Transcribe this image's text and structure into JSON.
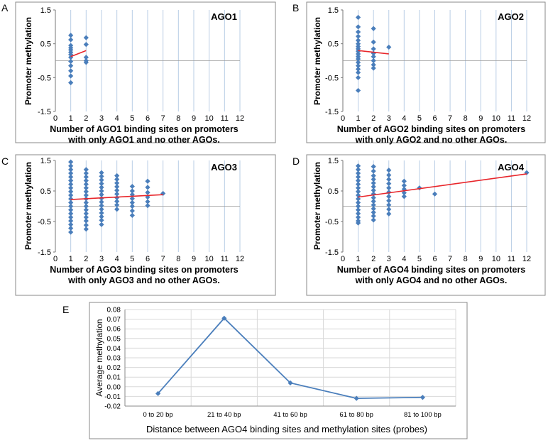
{
  "chart_data": [
    {
      "panel": "A",
      "type": "scatter",
      "label": "AGO1",
      "xlabel": [
        "Number of AGO1 binding sites on promoters",
        "with only AGO1 and no other AGOs."
      ],
      "ylabel": "Promoter methylation",
      "xlim": [
        0,
        12
      ],
      "ylim": [
        -1.5,
        1.5
      ],
      "xticks": [
        "0",
        "1",
        "2",
        "3",
        "4",
        "5",
        "6",
        "7",
        "8",
        "9",
        "10",
        "11",
        "12"
      ],
      "yticks": [
        "1.5",
        "0.5",
        "-0.5",
        "-1.5"
      ],
      "points": [
        [
          1,
          0.75
        ],
        [
          1,
          0.62
        ],
        [
          1,
          0.45
        ],
        [
          1,
          0.38
        ],
        [
          1,
          0.32
        ],
        [
          1,
          0.25
        ],
        [
          1,
          0.18
        ],
        [
          1,
          0.1
        ],
        [
          1,
          -0.02
        ],
        [
          1,
          -0.15
        ],
        [
          1,
          -0.3
        ],
        [
          1,
          -0.45
        ],
        [
          1,
          -0.65
        ],
        [
          2,
          0.68
        ],
        [
          2,
          0.48
        ],
        [
          2,
          0.1
        ],
        [
          2,
          0.0
        ],
        [
          2,
          -0.05
        ]
      ],
      "trend": [
        [
          1,
          0.12
        ],
        [
          2,
          0.3
        ]
      ]
    },
    {
      "panel": "B",
      "type": "scatter",
      "label": "AGO2",
      "xlabel": [
        "Number of AGO2 binding sites on promoters",
        "with only AGO2 and no other AGOs."
      ],
      "ylabel": "Promoter methylation",
      "xlim": [
        0,
        12
      ],
      "ylim": [
        -1.5,
        1.5
      ],
      "xticks": [
        "0",
        "1",
        "2",
        "3",
        "4",
        "5",
        "6",
        "7",
        "8",
        "9",
        "10",
        "11",
        "12"
      ],
      "yticks": [
        "1.5",
        "0.5",
        "-0.5",
        "-1.5"
      ],
      "points": [
        [
          1,
          1.28
        ],
        [
          1,
          1.0
        ],
        [
          1,
          0.85
        ],
        [
          1,
          0.72
        ],
        [
          1,
          0.6
        ],
        [
          1,
          0.5
        ],
        [
          1,
          0.42
        ],
        [
          1,
          0.35
        ],
        [
          1,
          0.28
        ],
        [
          1,
          0.2
        ],
        [
          1,
          0.12
        ],
        [
          1,
          0.05
        ],
        [
          1,
          -0.05
        ],
        [
          1,
          -0.15
        ],
        [
          1,
          -0.25
        ],
        [
          1,
          -0.35
        ],
        [
          1,
          -0.5
        ],
        [
          1,
          -0.88
        ],
        [
          2,
          0.95
        ],
        [
          2,
          0.55
        ],
        [
          2,
          0.35
        ],
        [
          2,
          0.22
        ],
        [
          2,
          0.12
        ],
        [
          2,
          0.0
        ],
        [
          2,
          -0.12
        ],
        [
          2,
          -0.22
        ],
        [
          3,
          0.4
        ]
      ],
      "trend": [
        [
          1,
          0.3
        ],
        [
          3,
          0.2
        ]
      ]
    },
    {
      "panel": "C",
      "type": "scatter",
      "label": "AGO3",
      "xlabel": [
        "Number of AGO3 binding sites on promoters",
        "with only AGO3 and no other AGOs."
      ],
      "ylabel": "Promoter methylation",
      "xlim": [
        0,
        12
      ],
      "ylim": [
        -1.5,
        1.5
      ],
      "xticks": [
        "0",
        "1",
        "2",
        "3",
        "4",
        "5",
        "6",
        "7",
        "8",
        "9",
        "10",
        "11",
        "12"
      ],
      "yticks": [
        "1.5",
        "0.5",
        "-0.5",
        "-1.5"
      ],
      "points": [
        [
          1,
          1.45
        ],
        [
          1,
          1.32
        ],
        [
          1,
          1.2
        ],
        [
          1,
          1.08
        ],
        [
          1,
          0.96
        ],
        [
          1,
          0.84
        ],
        [
          1,
          0.72
        ],
        [
          1,
          0.6
        ],
        [
          1,
          0.48
        ],
        [
          1,
          0.36
        ],
        [
          1,
          0.24
        ],
        [
          1,
          0.12
        ],
        [
          1,
          0.0
        ],
        [
          1,
          -0.12
        ],
        [
          1,
          -0.24
        ],
        [
          1,
          -0.36
        ],
        [
          1,
          -0.48
        ],
        [
          1,
          -0.6
        ],
        [
          1,
          -0.72
        ],
        [
          1,
          -0.85
        ],
        [
          2,
          1.2
        ],
        [
          2,
          1.08
        ],
        [
          2,
          0.96
        ],
        [
          2,
          0.84
        ],
        [
          2,
          0.72
        ],
        [
          2,
          0.6
        ],
        [
          2,
          0.48
        ],
        [
          2,
          0.36
        ],
        [
          2,
          0.24
        ],
        [
          2,
          0.12
        ],
        [
          2,
          0.0
        ],
        [
          2,
          -0.12
        ],
        [
          2,
          -0.24
        ],
        [
          2,
          -0.36
        ],
        [
          2,
          -0.48
        ],
        [
          2,
          -0.62
        ],
        [
          2,
          -0.75
        ],
        [
          3,
          1.1
        ],
        [
          3,
          0.98
        ],
        [
          3,
          0.86
        ],
        [
          3,
          0.74
        ],
        [
          3,
          0.62
        ],
        [
          3,
          0.5
        ],
        [
          3,
          0.38
        ],
        [
          3,
          0.26
        ],
        [
          3,
          0.14
        ],
        [
          3,
          0.02
        ],
        [
          3,
          -0.1
        ],
        [
          3,
          -0.22
        ],
        [
          3,
          -0.34
        ],
        [
          3,
          -0.46
        ],
        [
          3,
          -0.6
        ],
        [
          4,
          1.0
        ],
        [
          4,
          0.88
        ],
        [
          4,
          0.76
        ],
        [
          4,
          0.64
        ],
        [
          4,
          0.52
        ],
        [
          4,
          0.4
        ],
        [
          4,
          0.28
        ],
        [
          4,
          0.16
        ],
        [
          4,
          0.04
        ],
        [
          4,
          -0.1
        ],
        [
          5,
          0.65
        ],
        [
          5,
          0.5
        ],
        [
          5,
          0.38
        ],
        [
          5,
          0.25
        ],
        [
          5,
          0.12
        ],
        [
          5,
          0.0
        ],
        [
          5,
          -0.15
        ],
        [
          5,
          -0.3
        ],
        [
          6,
          0.82
        ],
        [
          6,
          0.62
        ],
        [
          6,
          0.45
        ],
        [
          6,
          0.3
        ],
        [
          6,
          0.15
        ],
        [
          6,
          0.02
        ],
        [
          7,
          0.42
        ]
      ],
      "trend": [
        [
          1,
          0.22
        ],
        [
          7,
          0.38
        ]
      ]
    },
    {
      "panel": "D",
      "type": "scatter",
      "label": "AGO4",
      "xlabel": [
        "Number of AGO4 binding sites on promoters",
        "with only AGO4 and no other AGOs."
      ],
      "ylabel": "Promoter methylation",
      "xlim": [
        0,
        12
      ],
      "ylim": [
        -1.5,
        1.5
      ],
      "xticks": [
        "0",
        "1",
        "2",
        "3",
        "4",
        "5",
        "6",
        "7",
        "8",
        "9",
        "10",
        "11",
        "12"
      ],
      "yticks": [
        "1.5",
        "0.5",
        "-0.5",
        "-1.5"
      ],
      "points": [
        [
          1,
          1.32
        ],
        [
          1,
          1.2
        ],
        [
          1,
          1.08
        ],
        [
          1,
          0.96
        ],
        [
          1,
          0.84
        ],
        [
          1,
          0.72
        ],
        [
          1,
          0.6
        ],
        [
          1,
          0.48
        ],
        [
          1,
          0.36
        ],
        [
          1,
          0.24
        ],
        [
          1,
          0.12
        ],
        [
          1,
          0.0
        ],
        [
          1,
          -0.12
        ],
        [
          1,
          -0.24
        ],
        [
          1,
          -0.36
        ],
        [
          1,
          -0.48
        ],
        [
          1,
          -0.55
        ],
        [
          2,
          1.3
        ],
        [
          2,
          1.15
        ],
        [
          2,
          1.0
        ],
        [
          2,
          0.88
        ],
        [
          2,
          0.76
        ],
        [
          2,
          0.64
        ],
        [
          2,
          0.52
        ],
        [
          2,
          0.4
        ],
        [
          2,
          0.28
        ],
        [
          2,
          0.16
        ],
        [
          2,
          0.04
        ],
        [
          2,
          -0.08
        ],
        [
          2,
          -0.2
        ],
        [
          2,
          -0.32
        ],
        [
          2,
          -0.45
        ],
        [
          3,
          1.18
        ],
        [
          3,
          1.02
        ],
        [
          3,
          0.88
        ],
        [
          3,
          0.74
        ],
        [
          3,
          0.6
        ],
        [
          3,
          0.46
        ],
        [
          3,
          0.32
        ],
        [
          3,
          0.18
        ],
        [
          3,
          0.04
        ],
        [
          3,
          -0.1
        ],
        [
          3,
          -0.25
        ],
        [
          4,
          0.82
        ],
        [
          4,
          0.68
        ],
        [
          4,
          0.56
        ],
        [
          4,
          0.44
        ],
        [
          4,
          0.32
        ],
        [
          5,
          0.6
        ],
        [
          6,
          0.4
        ],
        [
          12,
          1.1
        ]
      ],
      "trend": [
        [
          1,
          0.3
        ],
        [
          12,
          1.06
        ]
      ]
    },
    {
      "panel": "E",
      "type": "line",
      "xlabel": "Distance between AGO4 binding sites and methylation sites (probes)",
      "ylabel": "Average methylation",
      "categories": [
        "0 to 20 bp",
        "21 to 40 bp",
        "41 to 60 bp",
        "61 to 80 bp",
        "81 to 100 bp"
      ],
      "values": [
        -0.007,
        0.071,
        0.004,
        -0.012,
        -0.011
      ],
      "ylim": [
        -0.02,
        0.08
      ],
      "yticks": [
        "0.08",
        "0.07",
        "0.06",
        "0.05",
        "0.04",
        "0.03",
        "0.02",
        "0.01",
        "0.00",
        "-0.01",
        "-0.02"
      ]
    }
  ],
  "colors": {
    "point": "#4a7ebb",
    "trend": "#e8262b",
    "line": "#4a7ebb",
    "grid": "#b9cde5",
    "border": "#888888"
  }
}
